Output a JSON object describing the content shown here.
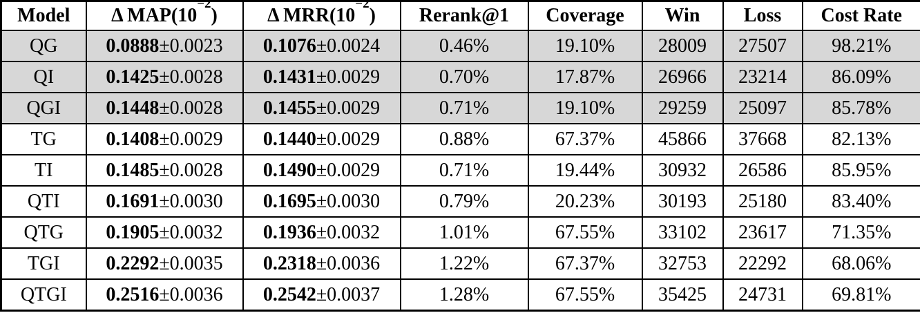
{
  "colors": {
    "row_shade": "#d7d7d7",
    "border": "#000000",
    "background": "#ffffff",
    "text": "#000000"
  },
  "table": {
    "headers": [
      {
        "text": "Model"
      },
      {
        "prefix": "Δ MAP(10",
        "sup": "−2",
        "suffix": ")"
      },
      {
        "prefix": "Δ MRR(10",
        "sup": "−2",
        "suffix": ")"
      },
      {
        "text": "Rerank@1"
      },
      {
        "text": "Coverage"
      },
      {
        "text": "Win"
      },
      {
        "text": "Loss"
      },
      {
        "text": "Cost Rate"
      }
    ],
    "rows": [
      {
        "model": "QG",
        "map_mean": "0.0888",
        "map_err": "±0.0023",
        "mrr_mean": "0.1076",
        "mrr_err": "±0.0024",
        "rerank": "0.46%",
        "coverage": "19.10%",
        "win": "28009",
        "loss": "27507",
        "cost_rate": "98.21%",
        "shaded": true
      },
      {
        "model": "QI",
        "map_mean": "0.1425",
        "map_err": "±0.0028",
        "mrr_mean": "0.1431",
        "mrr_err": "±0.0029",
        "rerank": "0.70%",
        "coverage": "17.87%",
        "win": "26966",
        "loss": "23214",
        "cost_rate": "86.09%",
        "shaded": true
      },
      {
        "model": "QGI",
        "map_mean": "0.1448",
        "map_err": "±0.0028",
        "mrr_mean": "0.1455",
        "mrr_err": "±0.0029",
        "rerank": "0.71%",
        "coverage": "19.10%",
        "win": "29259",
        "loss": "25097",
        "cost_rate": "85.78%",
        "shaded": true
      },
      {
        "model": "TG",
        "map_mean": "0.1408",
        "map_err": "±0.0029",
        "mrr_mean": "0.1440",
        "mrr_err": "±0.0029",
        "rerank": "0.88%",
        "coverage": "67.37%",
        "win": "45866",
        "loss": "37668",
        "cost_rate": "82.13%",
        "shaded": false
      },
      {
        "model": "TI",
        "map_mean": "0.1485",
        "map_err": "±0.0028",
        "mrr_mean": "0.1490",
        "mrr_err": "±0.0029",
        "rerank": "0.71%",
        "coverage": "19.44%",
        "win": "30932",
        "loss": "26586",
        "cost_rate": "85.95%",
        "shaded": false
      },
      {
        "model": "QTI",
        "map_mean": "0.1691",
        "map_err": "±0.0030",
        "mrr_mean": "0.1695",
        "mrr_err": "±0.0030",
        "rerank": "0.79%",
        "coverage": "20.23%",
        "win": "30193",
        "loss": "25180",
        "cost_rate": "83.40%",
        "shaded": false
      },
      {
        "model": "QTG",
        "map_mean": "0.1905",
        "map_err": "±0.0032",
        "mrr_mean": "0.1936",
        "mrr_err": "±0.0032",
        "rerank": "1.01%",
        "coverage": "67.55%",
        "win": "33102",
        "loss": "23617",
        "cost_rate": "71.35%",
        "shaded": false
      },
      {
        "model": "TGI",
        "map_mean": "0.2292",
        "map_err": "±0.0035",
        "mrr_mean": "0.2318",
        "mrr_err": "±0.0036",
        "rerank": "1.22%",
        "coverage": "67.37%",
        "win": "32753",
        "loss": "22292",
        "cost_rate": "68.06%",
        "shaded": false
      },
      {
        "model": "QTGI",
        "map_mean": "0.2516",
        "map_err": "±0.0036",
        "mrr_mean": "0.2542",
        "mrr_err": "±0.0037",
        "rerank": "1.28%",
        "coverage": "67.55%",
        "win": "35425",
        "loss": "24731",
        "cost_rate": "69.81%",
        "shaded": false
      }
    ]
  },
  "chart_data": {
    "type": "table",
    "columns": [
      "Model",
      "Δ MAP(10^−2)",
      "Δ MRR(10^−2)",
      "Rerank@1",
      "Coverage",
      "Win",
      "Loss",
      "Cost Rate"
    ],
    "rows": [
      [
        "QG",
        "0.0888±0.0023",
        "0.1076±0.0024",
        "0.46%",
        "19.10%",
        28009,
        27507,
        "98.21%"
      ],
      [
        "QI",
        "0.1425±0.0028",
        "0.1431±0.0029",
        "0.70%",
        "17.87%",
        26966,
        23214,
        "86.09%"
      ],
      [
        "QGI",
        "0.1448±0.0028",
        "0.1455±0.0029",
        "0.71%",
        "19.10%",
        29259,
        25097,
        "85.78%"
      ],
      [
        "TG",
        "0.1408±0.0029",
        "0.1440±0.0029",
        "0.88%",
        "67.37%",
        45866,
        37668,
        "82.13%"
      ],
      [
        "TI",
        "0.1485±0.0028",
        "0.1490±0.0029",
        "0.71%",
        "19.44%",
        30932,
        26586,
        "85.95%"
      ],
      [
        "QTI",
        "0.1691±0.0030",
        "0.1695±0.0030",
        "0.79%",
        "20.23%",
        30193,
        25180,
        "83.40%"
      ],
      [
        "QTG",
        "0.1905±0.0032",
        "0.1936±0.0032",
        "1.01%",
        "67.55%",
        33102,
        23617,
        "71.35%"
      ],
      [
        "TGI",
        "0.2292±0.0035",
        "0.2318±0.0036",
        "1.22%",
        "67.37%",
        32753,
        22292,
        "68.06%"
      ],
      [
        "QTGI",
        "0.2516±0.0036",
        "0.2542±0.0037",
        "1.28%",
        "67.55%",
        35425,
        24731,
        "69.81%"
      ]
    ]
  }
}
